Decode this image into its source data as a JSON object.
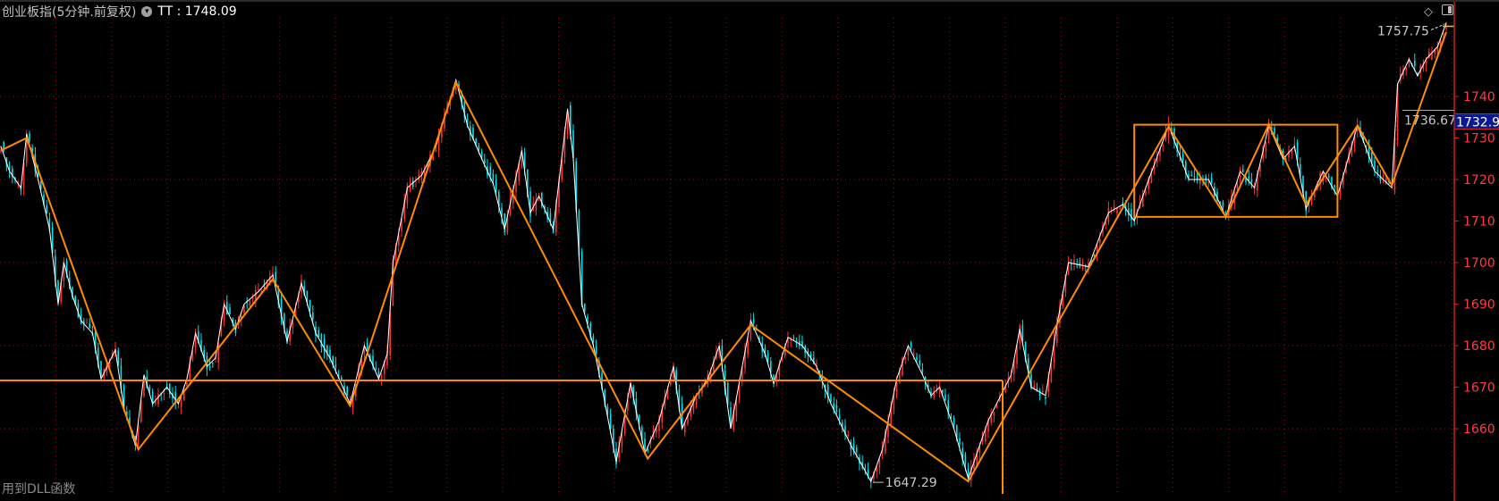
{
  "header": {
    "title": "创业板指(5分钟.前复权)",
    "indicator_icon": "circle-chevron-down-icon",
    "indicator_text": "TT : 1748.09"
  },
  "footer": {
    "text": "用到DLL函数"
  },
  "toolbar_icons": [
    "diamond-icon",
    "panel-toggle-icon"
  ],
  "colors": {
    "background": "#000000",
    "up_candle": "#ff3232",
    "down_candle": "#00e5ee",
    "price_line": "#ffffff",
    "drawing": "#ff8c00",
    "axis": "#cc1f1f",
    "grid": "#8b1010",
    "current_price_box": "#0a1a8c"
  },
  "chart_data": {
    "type": "candlestick",
    "interval": "5分钟",
    "y_ticks": [
      1660,
      1670,
      1680,
      1690,
      1700,
      1710,
      1720,
      1730,
      1740
    ],
    "ylim": [
      1640,
      1762
    ],
    "grid": true,
    "price_points": [
      [
        0,
        1728
      ],
      [
        3,
        1722
      ],
      [
        7,
        1718
      ],
      [
        9,
        1731
      ],
      [
        13,
        1720
      ],
      [
        17,
        1708
      ],
      [
        20,
        1690
      ],
      [
        22,
        1700
      ],
      [
        25,
        1692
      ],
      [
        28,
        1686
      ],
      [
        32,
        1683
      ],
      [
        35,
        1672
      ],
      [
        40,
        1679
      ],
      [
        43,
        1665
      ],
      [
        47,
        1656
      ],
      [
        50,
        1673
      ],
      [
        53,
        1666
      ],
      [
        58,
        1670
      ],
      [
        62,
        1666
      ],
      [
        65,
        1672
      ],
      [
        68,
        1683
      ],
      [
        72,
        1675
      ],
      [
        75,
        1677
      ],
      [
        78,
        1690
      ],
      [
        82,
        1684
      ],
      [
        85,
        1690
      ],
      [
        90,
        1693
      ],
      [
        95,
        1697
      ],
      [
        100,
        1681
      ],
      [
        105,
        1695
      ],
      [
        110,
        1683
      ],
      [
        115,
        1677
      ],
      [
        122,
        1666
      ],
      [
        127,
        1680
      ],
      [
        132,
        1672
      ],
      [
        135,
        1678
      ],
      [
        137,
        1700
      ],
      [
        142,
        1718
      ],
      [
        147,
        1721
      ],
      [
        152,
        1728
      ],
      [
        155,
        1735
      ],
      [
        159,
        1744
      ],
      [
        163,
        1733
      ],
      [
        168,
        1725
      ],
      [
        172,
        1719
      ],
      [
        176,
        1708
      ],
      [
        182,
        1727
      ],
      [
        185,
        1712
      ],
      [
        188,
        1716
      ],
      [
        193,
        1708
      ],
      [
        198,
        1737
      ],
      [
        200,
        1725
      ],
      [
        203,
        1690
      ],
      [
        207,
        1680
      ],
      [
        210,
        1670
      ],
      [
        215,
        1652
      ],
      [
        220,
        1671
      ],
      [
        225,
        1654
      ],
      [
        230,
        1662
      ],
      [
        235,
        1675
      ],
      [
        238,
        1660
      ],
      [
        243,
        1668
      ],
      [
        247,
        1672
      ],
      [
        251,
        1680
      ],
      [
        255,
        1660
      ],
      [
        262,
        1686
      ],
      [
        267,
        1678
      ],
      [
        270,
        1671
      ],
      [
        275,
        1682
      ],
      [
        280,
        1680
      ],
      [
        285,
        1675
      ],
      [
        290,
        1666
      ],
      [
        297,
        1656
      ],
      [
        304,
        1647.29
      ],
      [
        308,
        1655
      ],
      [
        313,
        1672
      ],
      [
        317,
        1680
      ],
      [
        322,
        1673
      ],
      [
        325,
        1668
      ],
      [
        328,
        1670
      ],
      [
        333,
        1660
      ],
      [
        338,
        1648
      ],
      [
        345,
        1662
      ],
      [
        353,
        1673
      ],
      [
        356,
        1684
      ],
      [
        360,
        1670
      ],
      [
        365,
        1668
      ],
      [
        369,
        1685
      ],
      [
        373,
        1700
      ],
      [
        380,
        1699
      ],
      [
        387,
        1712
      ],
      [
        392,
        1714
      ],
      [
        396,
        1710
      ],
      [
        400,
        1718
      ],
      [
        408,
        1733
      ],
      [
        415,
        1720
      ],
      [
        422,
        1720
      ],
      [
        428,
        1711
      ],
      [
        433,
        1722
      ],
      [
        438,
        1718
      ],
      [
        443,
        1733
      ],
      [
        448,
        1725
      ],
      [
        452,
        1728
      ],
      [
        456,
        1713
      ],
      [
        462,
        1722
      ],
      [
        467,
        1716
      ],
      [
        474,
        1733
      ],
      [
        480,
        1722
      ],
      [
        486,
        1718
      ],
      [
        488,
        1743
      ],
      [
        492,
        1749
      ],
      [
        495,
        1745
      ],
      [
        498,
        1749
      ],
      [
        502,
        1752
      ],
      [
        505,
        1757.75
      ]
    ],
    "zigzag": [
      [
        0,
        1727
      ],
      [
        9,
        1730
      ],
      [
        48,
        1655
      ],
      [
        95,
        1696
      ],
      [
        122,
        1665.5
      ],
      [
        159,
        1743.4
      ],
      [
        226,
        1652.8
      ],
      [
        262,
        1685
      ],
      [
        338,
        1647.3
      ],
      [
        408,
        1732.7
      ],
      [
        428,
        1711
      ],
      [
        443,
        1733.2
      ],
      [
        456,
        1714
      ],
      [
        474,
        1733
      ],
      [
        486,
        1718.6
      ],
      [
        505,
        1755.5
      ]
    ],
    "horizontal_line": {
      "value": 1671.6,
      "from_bar": 0,
      "to_bar": 350
    },
    "vertical_line": {
      "bar": 350,
      "from_value": 1671.6
    },
    "rectangle": {
      "from_bar": 396,
      "to_bar": 467,
      "low": 1711,
      "high": 1733.2
    },
    "annotations": {
      "high_label": "1757.75",
      "low_label": "1647.29",
      "ref_label": "1736.67",
      "current_price": "1732.9"
    },
    "values": {
      "high": 1757.75,
      "low": 1647.29,
      "ref": 1736.67,
      "current": 1732.9
    }
  }
}
